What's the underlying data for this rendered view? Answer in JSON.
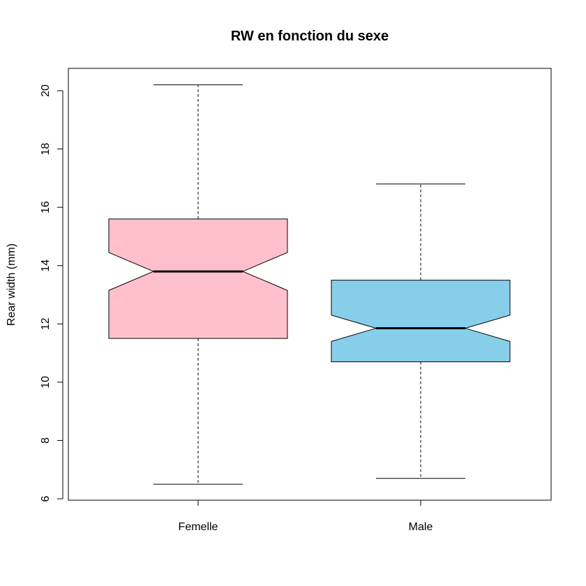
{
  "chart_data": {
    "type": "boxplot",
    "title": "RW en fonction du sexe",
    "xlabel": "",
    "ylabel": "Rear width (mm)",
    "ylim": [
      6,
      20.7
    ],
    "yticks": [
      6,
      8,
      10,
      12,
      14,
      16,
      18,
      20
    ],
    "notched": true,
    "categories": [
      "Femelle",
      "Male"
    ],
    "boxes": [
      {
        "category": "Femelle",
        "min": 6.5,
        "q1": 11.5,
        "median": 13.8,
        "q3": 15.6,
        "max": 20.2,
        "notch_low": 13.15,
        "notch_high": 14.45,
        "color": "#FFC0CB"
      },
      {
        "category": "Male",
        "min": 6.7,
        "q1": 10.7,
        "median": 11.85,
        "q3": 13.5,
        "max": 16.8,
        "notch_low": 11.4,
        "notch_high": 12.3,
        "color": "#87CEEB"
      }
    ]
  }
}
